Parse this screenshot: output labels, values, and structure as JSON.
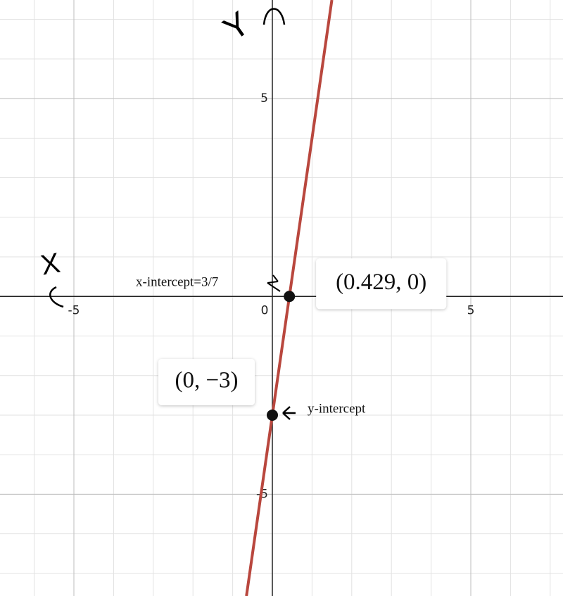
{
  "chart_data": {
    "type": "line",
    "xlim": [
      -6.862,
      7.323
    ],
    "ylim": [
      -7.571,
      7.491
    ],
    "xticks": [
      -5,
      0,
      5
    ],
    "yticks": [
      -5,
      5
    ],
    "xgrid": [
      -6,
      -5,
      -4,
      -3,
      -2,
      -1,
      0,
      1,
      2,
      3,
      4,
      5,
      6,
      7
    ],
    "ygrid": [
      -7,
      -6,
      -5,
      -4,
      -3,
      -2,
      -1,
      0,
      1,
      2,
      3,
      4,
      5,
      6,
      7
    ],
    "grid": true,
    "series": [
      {
        "color": "#b9473e",
        "x": [
          -0.653,
          0,
          0.429,
          1.499
        ],
        "values": [
          -7.571,
          -3,
          0,
          7.491
        ]
      }
    ],
    "points": [
      {
        "x": 0.429,
        "y": 0,
        "label": "(0.429, 0)"
      },
      {
        "x": 0,
        "y": -3,
        "label": "(0, −3)"
      }
    ],
    "annotations": [
      "x-intercept=3/7",
      "y-intercept",
      "X",
      "Y"
    ]
  }
}
